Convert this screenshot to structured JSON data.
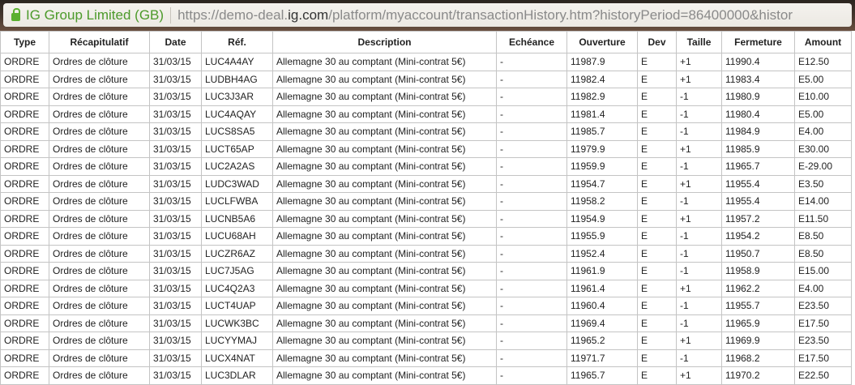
{
  "browser": {
    "identity": "IG Group Limited (GB)",
    "url_prefix": "https://demo-deal.",
    "url_domain": "ig.com",
    "url_suffix": "/platform/myaccount/transactionHistory.htm?historyPeriod=86400000&histor"
  },
  "columns": [
    "Type",
    "Récapitulatif",
    "Date",
    "Réf.",
    "Description",
    "Echéance",
    "Ouverture",
    "Dev",
    "Taille",
    "Fermeture",
    "Amount"
  ],
  "rows": [
    [
      "ORDRE",
      "Ordres de clôture",
      "31/03/15",
      "LUC4A4AY",
      "Allemagne 30 au comptant (Mini-contrat 5€)",
      "-",
      "11987.9",
      "E",
      "+1",
      "11990.4",
      "E12.50"
    ],
    [
      "ORDRE",
      "Ordres de clôture",
      "31/03/15",
      "LUDBH4AG",
      "Allemagne 30 au comptant (Mini-contrat 5€)",
      "-",
      "11982.4",
      "E",
      "+1",
      "11983.4",
      "E5.00"
    ],
    [
      "ORDRE",
      "Ordres de clôture",
      "31/03/15",
      "LUC3J3AR",
      "Allemagne 30 au comptant (Mini-contrat 5€)",
      "-",
      "11982.9",
      "E",
      "-1",
      "11980.9",
      "E10.00"
    ],
    [
      "ORDRE",
      "Ordres de clôture",
      "31/03/15",
      "LUC4AQAY",
      "Allemagne 30 au comptant (Mini-contrat 5€)",
      "-",
      "11981.4",
      "E",
      "-1",
      "11980.4",
      "E5.00"
    ],
    [
      "ORDRE",
      "Ordres de clôture",
      "31/03/15",
      "LUCS8SA5",
      "Allemagne 30 au comptant (Mini-contrat 5€)",
      "-",
      "11985.7",
      "E",
      "-1",
      "11984.9",
      "E4.00"
    ],
    [
      "ORDRE",
      "Ordres de clôture",
      "31/03/15",
      "LUCT65AP",
      "Allemagne 30 au comptant (Mini-contrat 5€)",
      "-",
      "11979.9",
      "E",
      "+1",
      "11985.9",
      "E30.00"
    ],
    [
      "ORDRE",
      "Ordres de clôture",
      "31/03/15",
      "LUC2A2AS",
      "Allemagne 30 au comptant (Mini-contrat 5€)",
      "-",
      "11959.9",
      "E",
      "-1",
      "11965.7",
      "E-29.00"
    ],
    [
      "ORDRE",
      "Ordres de clôture",
      "31/03/15",
      "LUDC3WAD",
      "Allemagne 30 au comptant (Mini-contrat 5€)",
      "-",
      "11954.7",
      "E",
      "+1",
      "11955.4",
      "E3.50"
    ],
    [
      "ORDRE",
      "Ordres de clôture",
      "31/03/15",
      "LUCLFWBA",
      "Allemagne 30 au comptant (Mini-contrat 5€)",
      "-",
      "11958.2",
      "E",
      "-1",
      "11955.4",
      "E14.00"
    ],
    [
      "ORDRE",
      "Ordres de clôture",
      "31/03/15",
      "LUCNB5A6",
      "Allemagne 30 au comptant (Mini-contrat 5€)",
      "-",
      "11954.9",
      "E",
      "+1",
      "11957.2",
      "E11.50"
    ],
    [
      "ORDRE",
      "Ordres de clôture",
      "31/03/15",
      "LUCU68AH",
      "Allemagne 30 au comptant (Mini-contrat 5€)",
      "-",
      "11955.9",
      "E",
      "-1",
      "11954.2",
      "E8.50"
    ],
    [
      "ORDRE",
      "Ordres de clôture",
      "31/03/15",
      "LUCZR6AZ",
      "Allemagne 30 au comptant (Mini-contrat 5€)",
      "-",
      "11952.4",
      "E",
      "-1",
      "11950.7",
      "E8.50"
    ],
    [
      "ORDRE",
      "Ordres de clôture",
      "31/03/15",
      "LUC7J5AG",
      "Allemagne 30 au comptant (Mini-contrat 5€)",
      "-",
      "11961.9",
      "E",
      "-1",
      "11958.9",
      "E15.00"
    ],
    [
      "ORDRE",
      "Ordres de clôture",
      "31/03/15",
      "LUC4Q2A3",
      "Allemagne 30 au comptant (Mini-contrat 5€)",
      "-",
      "11961.4",
      "E",
      "+1",
      "11962.2",
      "E4.00"
    ],
    [
      "ORDRE",
      "Ordres de clôture",
      "31/03/15",
      "LUCT4UAP",
      "Allemagne 30 au comptant (Mini-contrat 5€)",
      "-",
      "11960.4",
      "E",
      "-1",
      "11955.7",
      "E23.50"
    ],
    [
      "ORDRE",
      "Ordres de clôture",
      "31/03/15",
      "LUCWK3BC",
      "Allemagne 30 au comptant (Mini-contrat 5€)",
      "-",
      "11969.4",
      "E",
      "-1",
      "11965.9",
      "E17.50"
    ],
    [
      "ORDRE",
      "Ordres de clôture",
      "31/03/15",
      "LUCYYMAJ",
      "Allemagne 30 au comptant (Mini-contrat 5€)",
      "-",
      "11965.2",
      "E",
      "+1",
      "11969.9",
      "E23.50"
    ],
    [
      "ORDRE",
      "Ordres de clôture",
      "31/03/15",
      "LUCX4NAT",
      "Allemagne 30 au comptant (Mini-contrat 5€)",
      "-",
      "11971.7",
      "E",
      "-1",
      "11968.2",
      "E17.50"
    ],
    [
      "ORDRE",
      "Ordres de clôture",
      "31/03/15",
      "LUC3DLAR",
      "Allemagne 30 au comptant (Mini-contrat 5€)",
      "-",
      "11965.7",
      "E",
      "+1",
      "11970.2",
      "E22.50"
    ]
  ]
}
